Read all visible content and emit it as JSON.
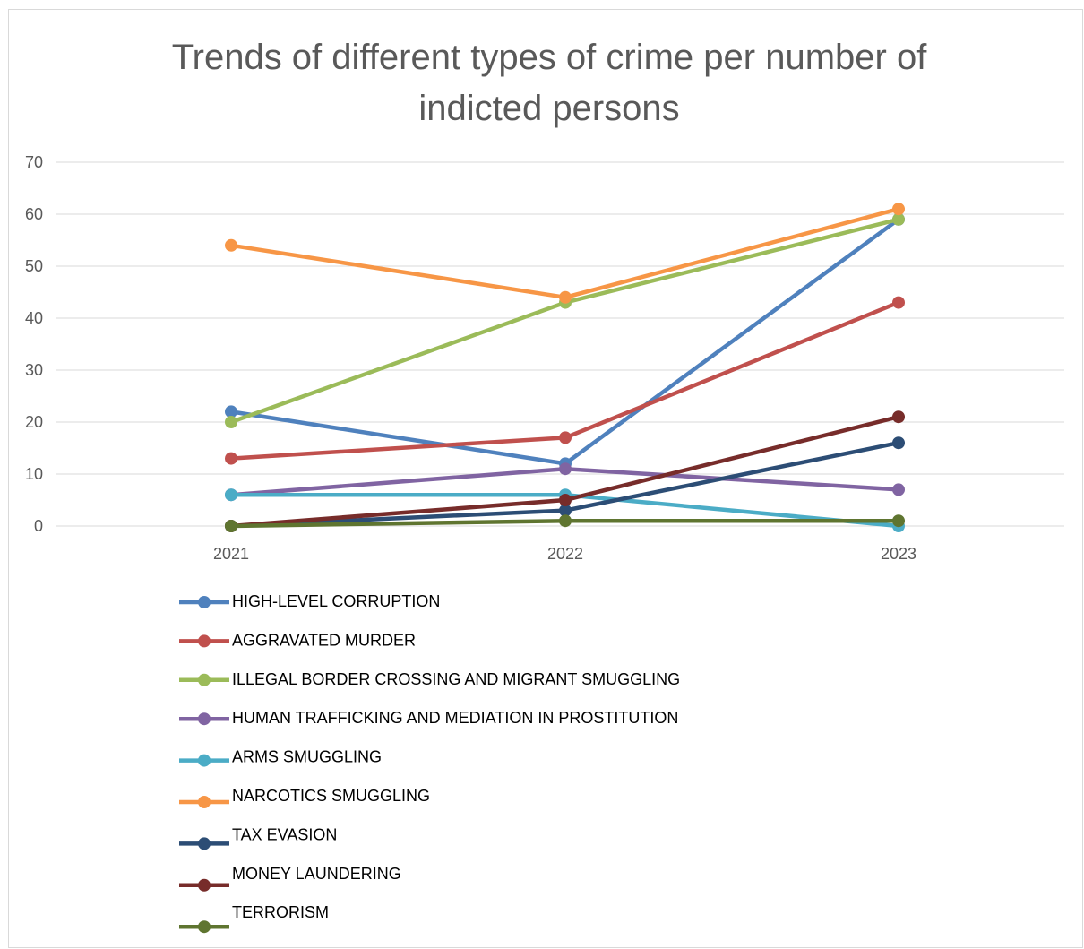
{
  "chart_data": {
    "type": "line",
    "title_lines": [
      "Trends of different types of crime per number of",
      "indicted persons"
    ],
    "x": [
      "2021",
      "2022",
      "2023"
    ],
    "ylim": [
      0,
      70
    ],
    "yticks": [
      0,
      10,
      20,
      30,
      40,
      50,
      60,
      70
    ],
    "grid": "horizontal",
    "legend_position": "bottom",
    "series": [
      {
        "name": "HIGH-LEVEL CORRUPTION",
        "values": [
          22,
          12,
          59
        ],
        "color": "#4F81BD"
      },
      {
        "name": "AGGRAVATED MURDER",
        "values": [
          13,
          17,
          43
        ],
        "color": "#C0504D"
      },
      {
        "name": "ILLEGAL BORDER CROSSING AND MIGRANT SMUGGLING",
        "values": [
          20,
          43,
          59
        ],
        "color": "#9BBB59"
      },
      {
        "name": "HUMAN TRAFFICKING AND MEDIATION IN PROSTITUTION",
        "values": [
          6,
          11,
          7
        ],
        "color": "#8064A2"
      },
      {
        "name": "ARMS SMUGGLING",
        "values": [
          6,
          6,
          0
        ],
        "color": "#4BACC6"
      },
      {
        "name": "NARCOTICS SMUGGLING",
        "values": [
          54,
          44,
          61
        ],
        "color": "#F79646"
      },
      {
        "name": "TAX EVASION",
        "values": [
          0,
          3,
          16
        ],
        "color": "#2C4D75"
      },
      {
        "name": "MONEY LAUNDERING",
        "values": [
          0,
          5,
          21
        ],
        "color": "#772C2A"
      },
      {
        "name": "TERRORISM",
        "values": [
          0,
          1,
          1
        ],
        "color": "#5F7530"
      }
    ]
  }
}
